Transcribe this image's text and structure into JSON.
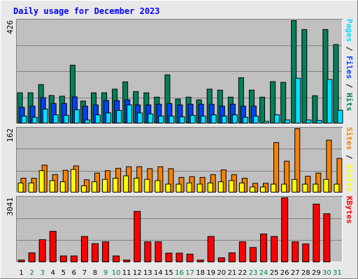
{
  "chart_data": {
    "type": "bar",
    "title": "Daily usage for December 2023",
    "x": [
      "1",
      "2",
      "3",
      "4",
      "5",
      "6",
      "7",
      "8",
      "9",
      "10",
      "11",
      "12",
      "13",
      "14",
      "15",
      "16",
      "17",
      "18",
      "19",
      "20",
      "21",
      "22",
      "23",
      "24",
      "25",
      "26",
      "27",
      "28",
      "29",
      "30",
      "31"
    ],
    "weekend_days": [
      "2",
      "3",
      "9",
      "10",
      "16",
      "17",
      "23",
      "24",
      "30",
      "31"
    ],
    "colors": {
      "hits": "#00805c",
      "files": "#0042f8",
      "pages": "#00e0ff",
      "visits": "#f88000",
      "sites": "#ffff00",
      "kbytes": "#ff0000",
      "background": "#c0c0c0",
      "frame": "#e8e8e8",
      "title": "#0000ff",
      "weekend": "#007f3f"
    },
    "panels": [
      {
        "id": "hits-files-pages",
        "max_label": "426",
        "ylim": [
          0,
          426
        ],
        "side_label": [
          {
            "text": "Pages",
            "color": "#00e0ff"
          },
          {
            "text": " / ",
            "color": "#000000"
          },
          {
            "text": "Files",
            "color": "#0042f8"
          },
          {
            "text": " / ",
            "color": "#000000"
          },
          {
            "text": "Hits",
            "color": "#00805c"
          }
        ],
        "series": [
          {
            "name": "Hits",
            "color": "#00805c",
            "values": [
              128,
              128,
              162,
              117,
              114,
              242,
              94,
              128,
              128,
              143,
              173,
              133,
              128,
              110,
              202,
              102,
              110,
              99,
              143,
              139,
              110,
              190,
              139,
              110,
              174,
              171,
              426,
              389,
              116,
              389,
              327
            ]
          },
          {
            "name": "Files",
            "color": "#0042f8",
            "values": [
              68,
              73,
              108,
              84,
              84,
              111,
              73,
              78,
              96,
              96,
              99,
              78,
              78,
              81,
              84,
              78,
              81,
              81,
              81,
              73,
              81,
              73,
              73,
              0,
              0,
              0,
              0,
              0,
              0,
              0,
              0
            ]
          },
          {
            "name": "Pages",
            "color": "#00e0ff",
            "values": [
              32,
              27,
              61,
              37,
              35,
              58,
              16,
              37,
              45,
              55,
              78,
              45,
              41,
              32,
              32,
              29,
              35,
              32,
              37,
              32,
              37,
              27,
              32,
              10,
              37,
              16,
              188,
              16,
              14,
              183,
              56
            ]
          }
        ]
      },
      {
        "id": "visits-sites",
        "max_label": "162",
        "ylim": [
          0,
          162
        ],
        "side_label": [
          {
            "text": "Sites",
            "color": "#f88000"
          },
          {
            "text": " / ",
            "color": "#000000"
          },
          {
            "text": "Visits",
            "color": "#ffff00"
          }
        ],
        "series": [
          {
            "name": "Visits",
            "color": "#f88000",
            "values": [
              37,
              37,
              70,
              46,
              57,
              68,
              33,
              50,
              56,
              62,
              66,
              66,
              61,
              66,
              61,
              39,
              41,
              39,
              46,
              58,
              46,
              37,
              24,
              24,
              127,
              80,
              162,
              42,
              50,
              133,
              87
            ]
          },
          {
            "name": "Sites",
            "color": "#ffff00",
            "values": [
              25,
              25,
              56,
              31,
              28,
              59,
              18,
              28,
              34,
              37,
              43,
              37,
              34,
              31,
              22,
              22,
              25,
              22,
              25,
              28,
              31,
              25,
              15,
              15,
              22,
              22,
              34,
              22,
              22,
              34,
              22
            ]
          }
        ]
      },
      {
        "id": "kbytes",
        "max_label": "3041",
        "ylim": [
          0,
          3041
        ],
        "side_label": [
          {
            "text": "KBytes",
            "color": "#ff0000"
          }
        ],
        "series": [
          {
            "name": "KBytes",
            "color": "#ff0000",
            "values": [
              119,
              458,
              1075,
              1467,
              313,
              313,
              1225,
              888,
              975,
              313,
              119,
              2401,
              975,
              975,
              444,
              444,
              399,
              119,
              1225,
              225,
              458,
              975,
              709,
              1342,
              1225,
              3041,
              975,
              875,
              2742,
              2292,
              0
            ]
          }
        ]
      }
    ]
  }
}
